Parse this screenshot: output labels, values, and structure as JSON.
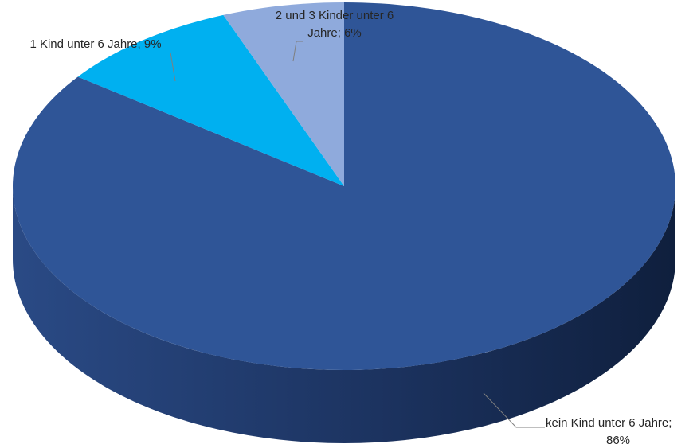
{
  "chart_data": {
    "type": "pie",
    "title": "",
    "slices": [
      {
        "label": "kein Kind unter 6 Jahre",
        "value": 86,
        "color": "#2F5597"
      },
      {
        "label": "1 Kind unter 6 Jahre",
        "value": 9,
        "color": "#00B0F0"
      },
      {
        "label": "2 und 3 Kinder unter 6 Jahre",
        "value": 6,
        "color": "#8FAADC"
      }
    ],
    "data_labels": [
      {
        "lines": [
          "kein Kind unter 6 Jahre;",
          "86%"
        ]
      },
      {
        "lines": [
          "1 Kind unter 6 Jahre; 9%"
        ]
      },
      {
        "lines": [
          "2 und 3 Kinder unter 6",
          "Jahre; 6%"
        ]
      }
    ],
    "legend": "none",
    "style": "3d"
  }
}
